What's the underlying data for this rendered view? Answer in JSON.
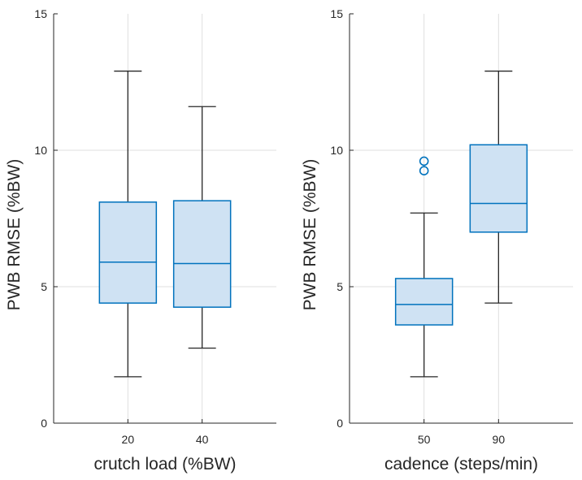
{
  "chart_data": [
    {
      "type": "box",
      "xlabel": "crutch load (%BW)",
      "ylabel": "PWB RMSE  (%BW)",
      "ylim": [
        0,
        15
      ],
      "yticks": [
        0,
        5,
        10,
        15
      ],
      "grid": true,
      "categories": [
        "20",
        "40"
      ],
      "boxes": [
        {
          "category": "20",
          "min": 1.7,
          "q1": 4.4,
          "median": 5.9,
          "q3": 8.1,
          "max": 12.9,
          "outliers": []
        },
        {
          "category": "40",
          "min": 2.75,
          "q1": 4.25,
          "median": 5.85,
          "q3": 8.15,
          "max": 11.6,
          "outliers": []
        }
      ]
    },
    {
      "type": "box",
      "xlabel": "cadence (steps/min)",
      "ylabel": "PWB RMSE  (%BW)",
      "ylim": [
        0,
        15
      ],
      "yticks": [
        0,
        5,
        10,
        15
      ],
      "grid": true,
      "categories": [
        "50",
        "90"
      ],
      "boxes": [
        {
          "category": "50",
          "min": 1.7,
          "q1": 3.6,
          "median": 4.35,
          "q3": 5.3,
          "max": 7.7,
          "outliers": [
            9.25,
            9.6
          ]
        },
        {
          "category": "90",
          "min": 4.4,
          "q1": 7.0,
          "median": 8.05,
          "q3": 10.2,
          "max": 12.9,
          "outliers": []
        }
      ]
    }
  ],
  "style": {
    "box_fill": "#cfe2f3",
    "box_stroke": "#0072bd",
    "whisker": "#262626",
    "grid": "#dfdfdf",
    "axis": "#262626"
  }
}
